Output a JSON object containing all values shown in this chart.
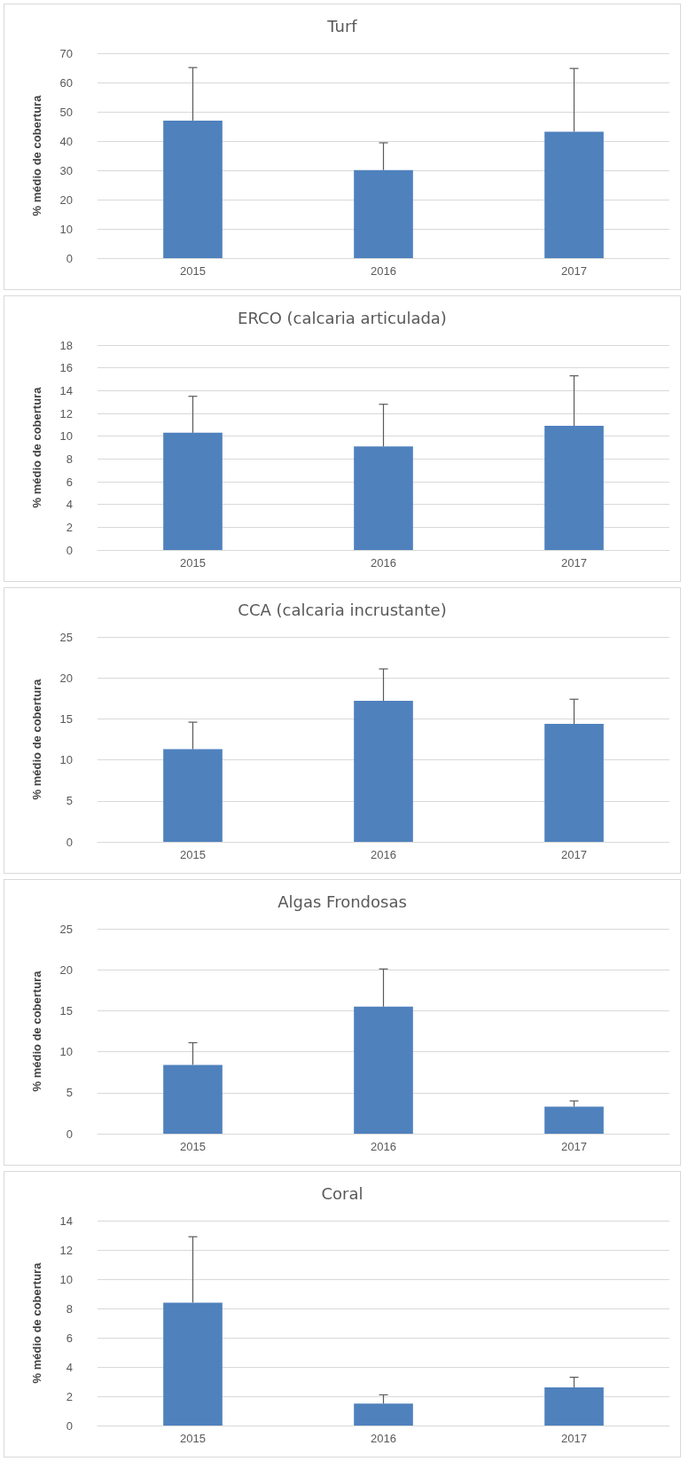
{
  "chart_data": [
    {
      "type": "bar",
      "title": "Turf",
      "ylabel": "% médio de cobertura",
      "categories": [
        "2015",
        "2016",
        "2017"
      ],
      "values": [
        47.0,
        30.1,
        43.2
      ],
      "errors": [
        [
          47.0,
          65.1
        ],
        [
          30.1,
          39.4
        ],
        [
          43.2,
          64.8
        ]
      ],
      "color": "#4f81bd",
      "ylim": [
        0,
        70
      ],
      "yticks": [
        0,
        10,
        20,
        30,
        40,
        50,
        60,
        70
      ],
      "grid": "y"
    },
    {
      "type": "bar",
      "title": "ERCO (calcaria articulada)",
      "ylabel": "% médio de cobertura",
      "categories": [
        "2015",
        "2016",
        "2017"
      ],
      "values": [
        10.3,
        9.1,
        10.9
      ],
      "errors": [
        [
          10.3,
          13.5
        ],
        [
          9.1,
          12.8
        ],
        [
          10.9,
          15.3
        ]
      ],
      "color": "#4f81bd",
      "ylim": [
        0,
        18
      ],
      "yticks": [
        0,
        2,
        4,
        6,
        8,
        10,
        12,
        14,
        16,
        18
      ],
      "grid": "y"
    },
    {
      "type": "bar",
      "title": "CCA (calcaria incrustante)",
      "ylabel": "% médio de cobertura",
      "categories": [
        "2015",
        "2016",
        "2017"
      ],
      "values": [
        11.3,
        17.2,
        14.4
      ],
      "errors": [
        [
          11.3,
          14.6
        ],
        [
          17.2,
          21.1
        ],
        [
          14.4,
          17.4
        ]
      ],
      "color": "#4f81bd",
      "ylim": [
        0,
        25
      ],
      "yticks": [
        0,
        5,
        10,
        15,
        20,
        25
      ],
      "grid": "y"
    },
    {
      "type": "bar",
      "title": "Algas Frondosas",
      "ylabel": "% médio de cobertura",
      "categories": [
        "2015",
        "2016",
        "2017"
      ],
      "values": [
        8.4,
        15.5,
        3.3
      ],
      "errors": [
        [
          8.4,
          11.1
        ],
        [
          15.5,
          20.1
        ],
        [
          3.3,
          4.0
        ]
      ],
      "color": "#4f81bd",
      "ylim": [
        0,
        25
      ],
      "yticks": [
        0,
        5,
        10,
        15,
        20,
        25
      ],
      "grid": "y"
    },
    {
      "type": "bar",
      "title": "Coral",
      "ylabel": "% médio de cobertura",
      "categories": [
        "2015",
        "2016",
        "2017"
      ],
      "values": [
        8.4,
        1.5,
        2.6
      ],
      "errors": [
        [
          8.4,
          12.9
        ],
        [
          1.5,
          2.1
        ],
        [
          2.6,
          3.3
        ]
      ],
      "color": "#4f81bd",
      "ylim": [
        0,
        14
      ],
      "yticks": [
        0,
        2,
        4,
        6,
        8,
        10,
        12,
        14
      ],
      "grid": "y"
    }
  ]
}
